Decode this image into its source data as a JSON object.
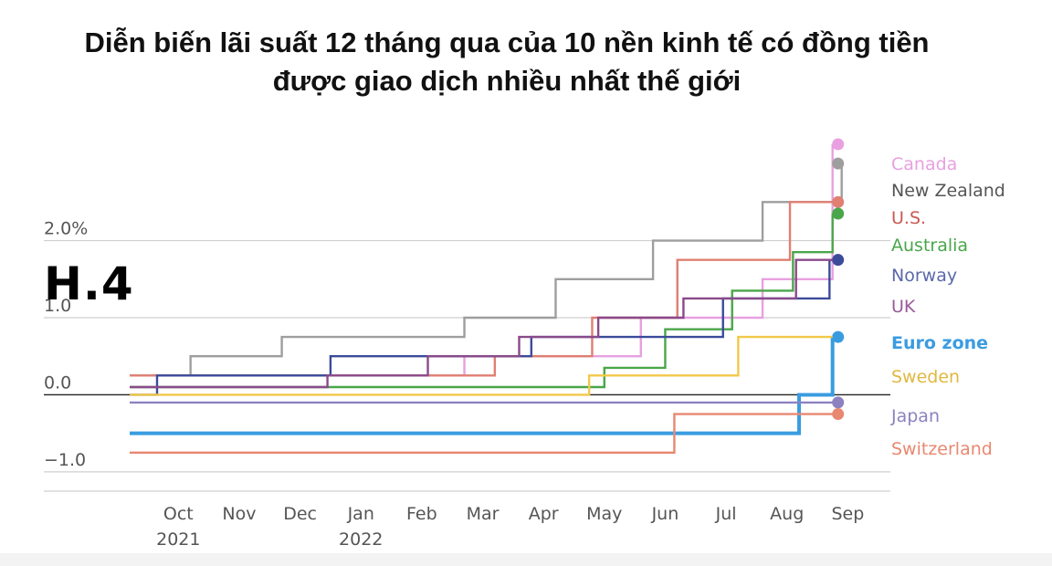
{
  "title_line1": "Diễn biến lãi suất 12 tháng qua của 10 nền kinh tế có đồng tiền",
  "title_line2": "được giao dịch nhiều nhất thế giới",
  "badge": "H.4",
  "chart_data": {
    "type": "line",
    "step": true,
    "title": "Diễn biến lãi suất 12 tháng qua của 10 nền kinh tế có đồng tiền được giao dịch nhiều nhất thế giới",
    "xlabel": "",
    "ylabel": "",
    "x_ticks": [
      {
        "m": 0.3,
        "label": "Oct",
        "sub": "2021"
      },
      {
        "m": 1.3,
        "label": "Nov",
        "sub": ""
      },
      {
        "m": 2.3,
        "label": "Dec",
        "sub": ""
      },
      {
        "m": 3.3,
        "label": "Jan",
        "sub": "2022"
      },
      {
        "m": 4.3,
        "label": "Feb",
        "sub": ""
      },
      {
        "m": 5.3,
        "label": "Mar",
        "sub": ""
      },
      {
        "m": 6.3,
        "label": "Apr",
        "sub": ""
      },
      {
        "m": 7.3,
        "label": "May",
        "sub": ""
      },
      {
        "m": 8.3,
        "label": "Jun",
        "sub": ""
      },
      {
        "m": 9.3,
        "label": "Jul",
        "sub": ""
      },
      {
        "m": 10.3,
        "label": "Aug",
        "sub": ""
      },
      {
        "m": 11.3,
        "label": "Sep",
        "sub": ""
      }
    ],
    "y_ticks": [
      {
        "v": 2.0,
        "label": "2.0%"
      },
      {
        "v": 1.0,
        "label": "1.0"
      },
      {
        "v": 0.0,
        "label": "0.0"
      },
      {
        "v": -1.0,
        "label": "−1.0"
      }
    ],
    "ylim": [
      -1.25,
      3.25
    ],
    "xlim": [
      -0.5,
      12.0
    ],
    "grid": true,
    "legend": "right",
    "series": [
      {
        "name": "Canada",
        "color": "#e8a0e0",
        "bold": false,
        "end_dot": true,
        "steps": [
          [
            -0.5,
            0.25
          ],
          [
            5.0,
            0.5
          ],
          [
            7.9,
            1.0
          ],
          [
            9.9,
            1.5
          ],
          [
            11.05,
            3.25
          ]
        ]
      },
      {
        "name": "New Zealand",
        "color": "#9e9e9e",
        "bold": false,
        "end_dot": true,
        "steps": [
          [
            -0.5,
            0.25
          ],
          [
            0.5,
            0.5
          ],
          [
            2.0,
            0.75
          ],
          [
            5.0,
            1.0
          ],
          [
            6.5,
            1.5
          ],
          [
            8.1,
            2.0
          ],
          [
            9.9,
            2.5
          ],
          [
            11.2,
            3.0
          ]
        ]
      },
      {
        "name": "U.S.",
        "color": "#e07f72",
        "bold": false,
        "end_dot": true,
        "steps": [
          [
            -0.5,
            0.25
          ],
          [
            5.5,
            0.5
          ],
          [
            7.1,
            1.0
          ],
          [
            8.5,
            1.75
          ],
          [
            10.35,
            2.5
          ]
        ]
      },
      {
        "name": "Australia",
        "color": "#4aa64a",
        "bold": false,
        "end_dot": true,
        "steps": [
          [
            -0.5,
            0.1
          ],
          [
            7.3,
            0.35
          ],
          [
            8.3,
            0.85
          ],
          [
            9.4,
            1.35
          ],
          [
            10.4,
            1.85
          ],
          [
            11.05,
            2.35
          ]
        ]
      },
      {
        "name": "Norway",
        "color": "#3b4b9a",
        "bold": false,
        "end_dot": true,
        "steps": [
          [
            -0.5,
            0.0
          ],
          [
            -0.05,
            0.25
          ],
          [
            2.8,
            0.5
          ],
          [
            6.1,
            0.75
          ],
          [
            9.25,
            1.25
          ],
          [
            11.0,
            1.75
          ]
        ]
      },
      {
        "name": "UK",
        "color": "#8a4a8a",
        "bold": false,
        "end_dot": false,
        "steps": [
          [
            -0.5,
            0.1
          ],
          [
            2.75,
            0.25
          ],
          [
            4.4,
            0.5
          ],
          [
            5.9,
            0.75
          ],
          [
            7.2,
            1.0
          ],
          [
            8.6,
            1.25
          ],
          [
            10.45,
            1.75
          ]
        ]
      },
      {
        "name": "Euro zone",
        "color": "#3a9ce0",
        "bold": true,
        "end_dot": true,
        "steps": [
          [
            -0.5,
            -0.5
          ],
          [
            10.5,
            0.0
          ],
          [
            11.05,
            0.75
          ]
        ]
      },
      {
        "name": "Sweden",
        "color": "#f2c84a",
        "bold": false,
        "end_dot": false,
        "steps": [
          [
            -0.5,
            0.0
          ],
          [
            7.05,
            0.25
          ],
          [
            9.5,
            0.75
          ]
        ]
      },
      {
        "name": "Japan",
        "color": "#8c82c0",
        "bold": false,
        "end_dot": true,
        "steps": [
          [
            -0.5,
            -0.1
          ]
        ]
      },
      {
        "name": "Switzerland",
        "color": "#e88870",
        "bold": false,
        "end_dot": true,
        "steps": [
          [
            -0.5,
            -0.75
          ],
          [
            8.45,
            -0.25
          ]
        ]
      }
    ],
    "legend_entries": [
      {
        "name": "Canada",
        "color": "#e8a0e0",
        "bold": false
      },
      {
        "name": "New Zealand",
        "color": "#555555",
        "bold": false
      },
      {
        "name": "U.S.",
        "color": "#c85a52",
        "bold": false
      },
      {
        "name": "Australia",
        "color": "#4aa64a",
        "bold": false
      },
      {
        "name": "Norway",
        "color": "#5a68aa",
        "bold": false
      },
      {
        "name": "UK",
        "color": "#9a5a9a",
        "bold": false
      },
      {
        "name": "Euro zone",
        "color": "#3a9ce0",
        "bold": true
      },
      {
        "name": "Sweden",
        "color": "#e0b840",
        "bold": false
      },
      {
        "name": "Japan",
        "color": "#8c82c0",
        "bold": false
      },
      {
        "name": "Switzerland",
        "color": "#e88870",
        "bold": false
      }
    ]
  }
}
